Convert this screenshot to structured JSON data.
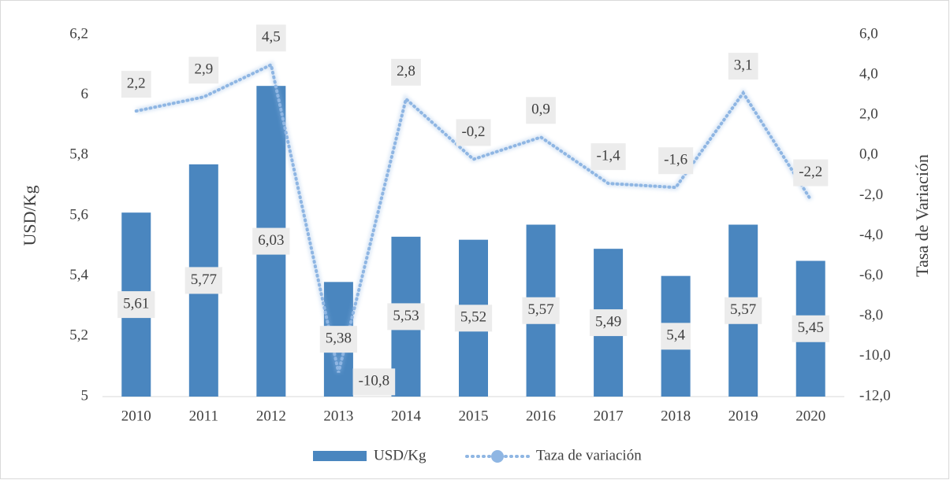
{
  "chart_data": {
    "type": "bar_line",
    "categories": [
      "2010",
      "2011",
      "2012",
      "2013",
      "2014",
      "2015",
      "2016",
      "2017",
      "2018",
      "2019",
      "2020"
    ],
    "series": [
      {
        "name": "USD/Kg",
        "color": "#4a86bf",
        "type": "bar",
        "values": [
          5.61,
          5.77,
          6.03,
          5.38,
          5.53,
          5.52,
          5.57,
          5.49,
          5.4,
          5.57,
          5.45
        ],
        "value_labels": [
          "5,61",
          "5,77",
          "6,03",
          "5,38",
          "5,53",
          "5,52",
          "5,57",
          "5,49",
          "5,4",
          "5,57",
          "5,45"
        ]
      },
      {
        "name": "Taza de variación",
        "color": "#8fb6e3",
        "type": "line",
        "axis": "y2",
        "values": [
          2.2,
          2.9,
          4.5,
          -10.8,
          2.8,
          -0.2,
          0.9,
          -1.4,
          -1.6,
          3.1,
          -2.2
        ],
        "value_labels": [
          "2,2",
          "2,9",
          "4,5",
          "-10,8",
          "2,8",
          "-0,2",
          "0,9",
          "-1,4",
          "-1,6",
          "3,1",
          "-2,2"
        ]
      }
    ],
    "y_label": "USD/Kg",
    "y2_label": "Tasa de Variación",
    "ylim": [
      5,
      6.2
    ],
    "yticks": [
      5,
      {
        "value": 5.2,
        "label": "5,2"
      },
      {
        "value": 5.4,
        "label": "5,4"
      },
      {
        "value": 5.6,
        "label": "5,6"
      },
      {
        "value": 5.8,
        "label": "5,8"
      },
      6,
      {
        "value": 6.2,
        "label": "6,2"
      }
    ],
    "y2lim": [
      -12,
      6
    ],
    "y2ticks": [
      {
        "value": -12,
        "label": "-12,0"
      },
      {
        "value": -10,
        "label": "-10,0"
      },
      {
        "value": -8,
        "label": "-8,0"
      },
      {
        "value": -6,
        "label": "-6,0"
      },
      {
        "value": -4,
        "label": "-4,0"
      },
      {
        "value": -2,
        "label": "-2,0"
      },
      {
        "value": 0,
        "label": "0,0"
      },
      {
        "value": 2,
        "label": "2,0"
      },
      {
        "value": 4,
        "label": "4,0"
      },
      {
        "value": 6,
        "label": "6,0"
      }
    ],
    "legend": "bottom"
  }
}
